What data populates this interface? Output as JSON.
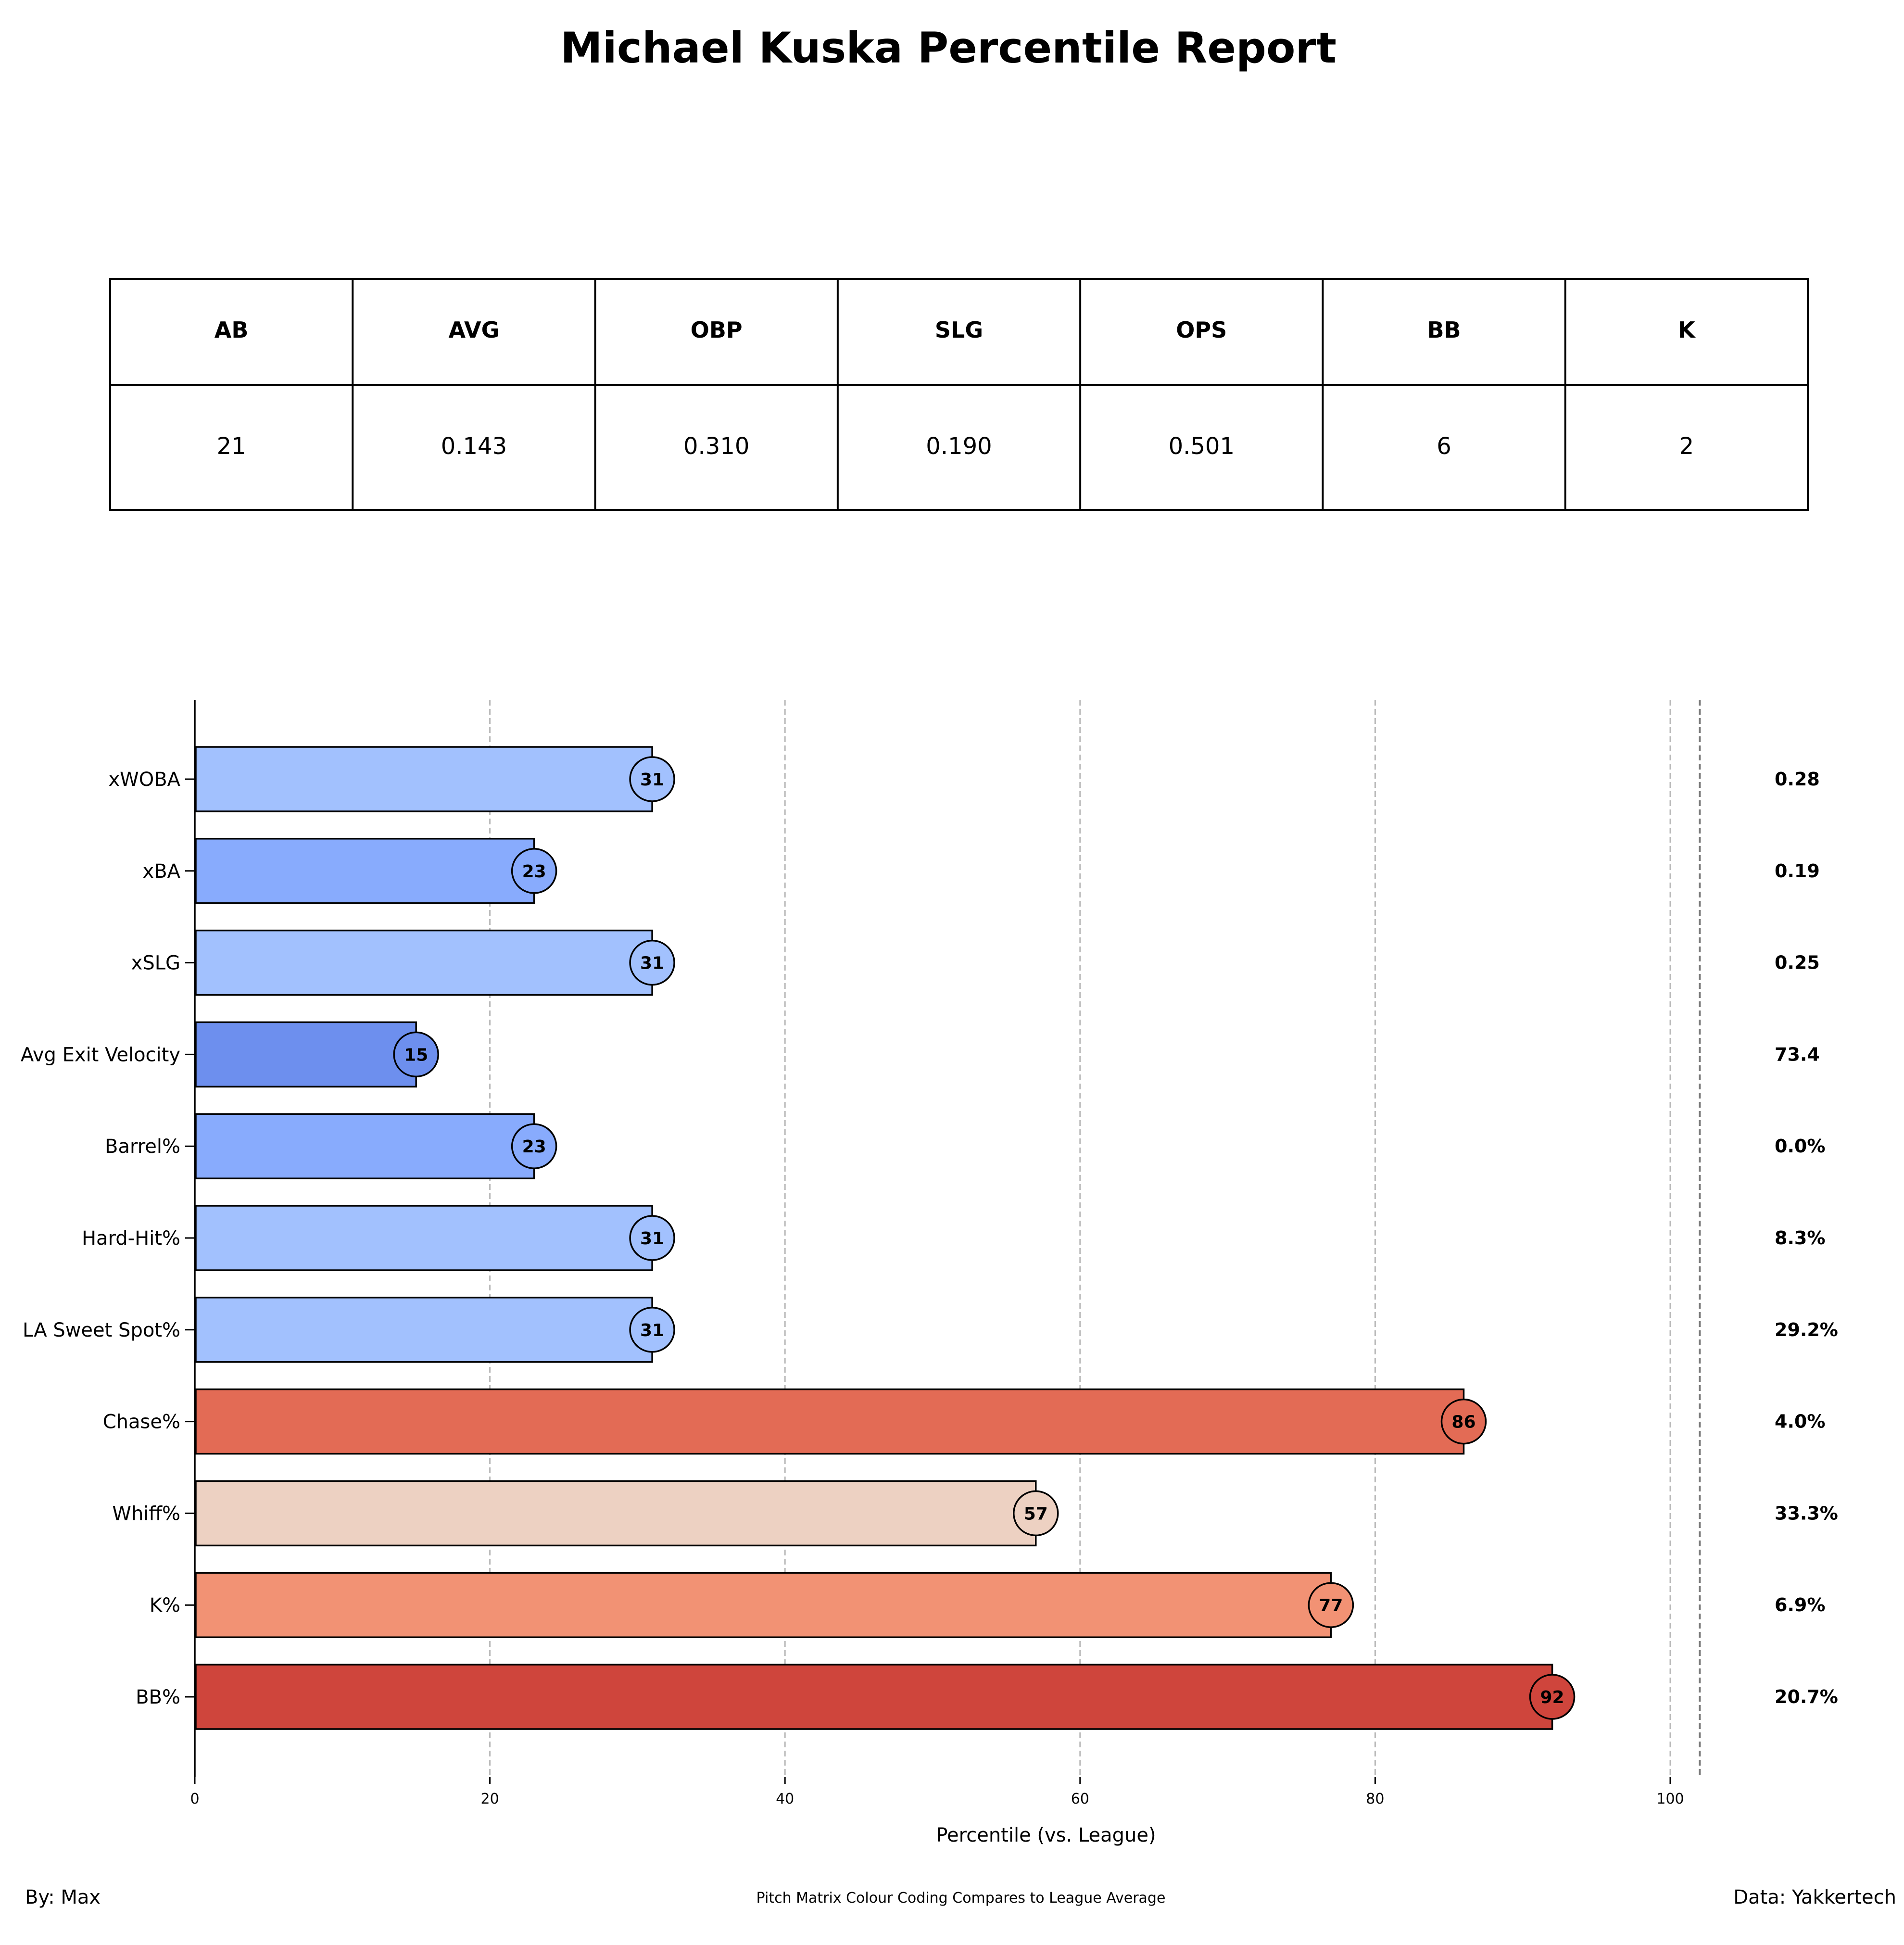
{
  "title": "Michael Kuska Percentile Report",
  "stats_table": {
    "headers": [
      "AB",
      "AVG",
      "OBP",
      "SLG",
      "OPS",
      "BB",
      "K"
    ],
    "values": [
      "21",
      "0.143",
      "0.310",
      "0.190",
      "0.501",
      "6",
      "2"
    ]
  },
  "chart_data": {
    "type": "bar",
    "orientation": "horizontal",
    "xlabel": "Percentile (vs. League)",
    "xlim": [
      0,
      102
    ],
    "xticks": [
      0,
      20,
      40,
      60,
      80,
      100
    ],
    "grid": true,
    "categories": [
      "xWOBA",
      "xBA",
      "xSLG",
      "Avg Exit Velocity",
      "Barrel%",
      "Hard-Hit%",
      "LA Sweet Spot%",
      "Chase%",
      "Whiff%",
      "K%",
      "BB%"
    ],
    "percentiles": [
      31,
      23,
      31,
      15,
      23,
      31,
      31,
      86,
      57,
      77,
      92
    ],
    "stat_values": [
      "0.28",
      "0.19",
      "0.25",
      "73.4",
      "0.0%",
      "8.3%",
      "29.2%",
      "4.0%",
      "33.3%",
      "6.9%",
      "20.7%"
    ],
    "colors": [
      "#a2c1fe",
      "#88abfd",
      "#a2c1fe",
      "#6d8fee",
      "#88abfd",
      "#a2c1fe",
      "#a2c1fe",
      "#e36b55",
      "#edd1c2",
      "#f29274",
      "#cf453c"
    ]
  },
  "footer": {
    "left": "By: Max",
    "center": "Pitch Matrix Colour Coding Compares to League Average",
    "right": "Data: Yakkertech"
  }
}
